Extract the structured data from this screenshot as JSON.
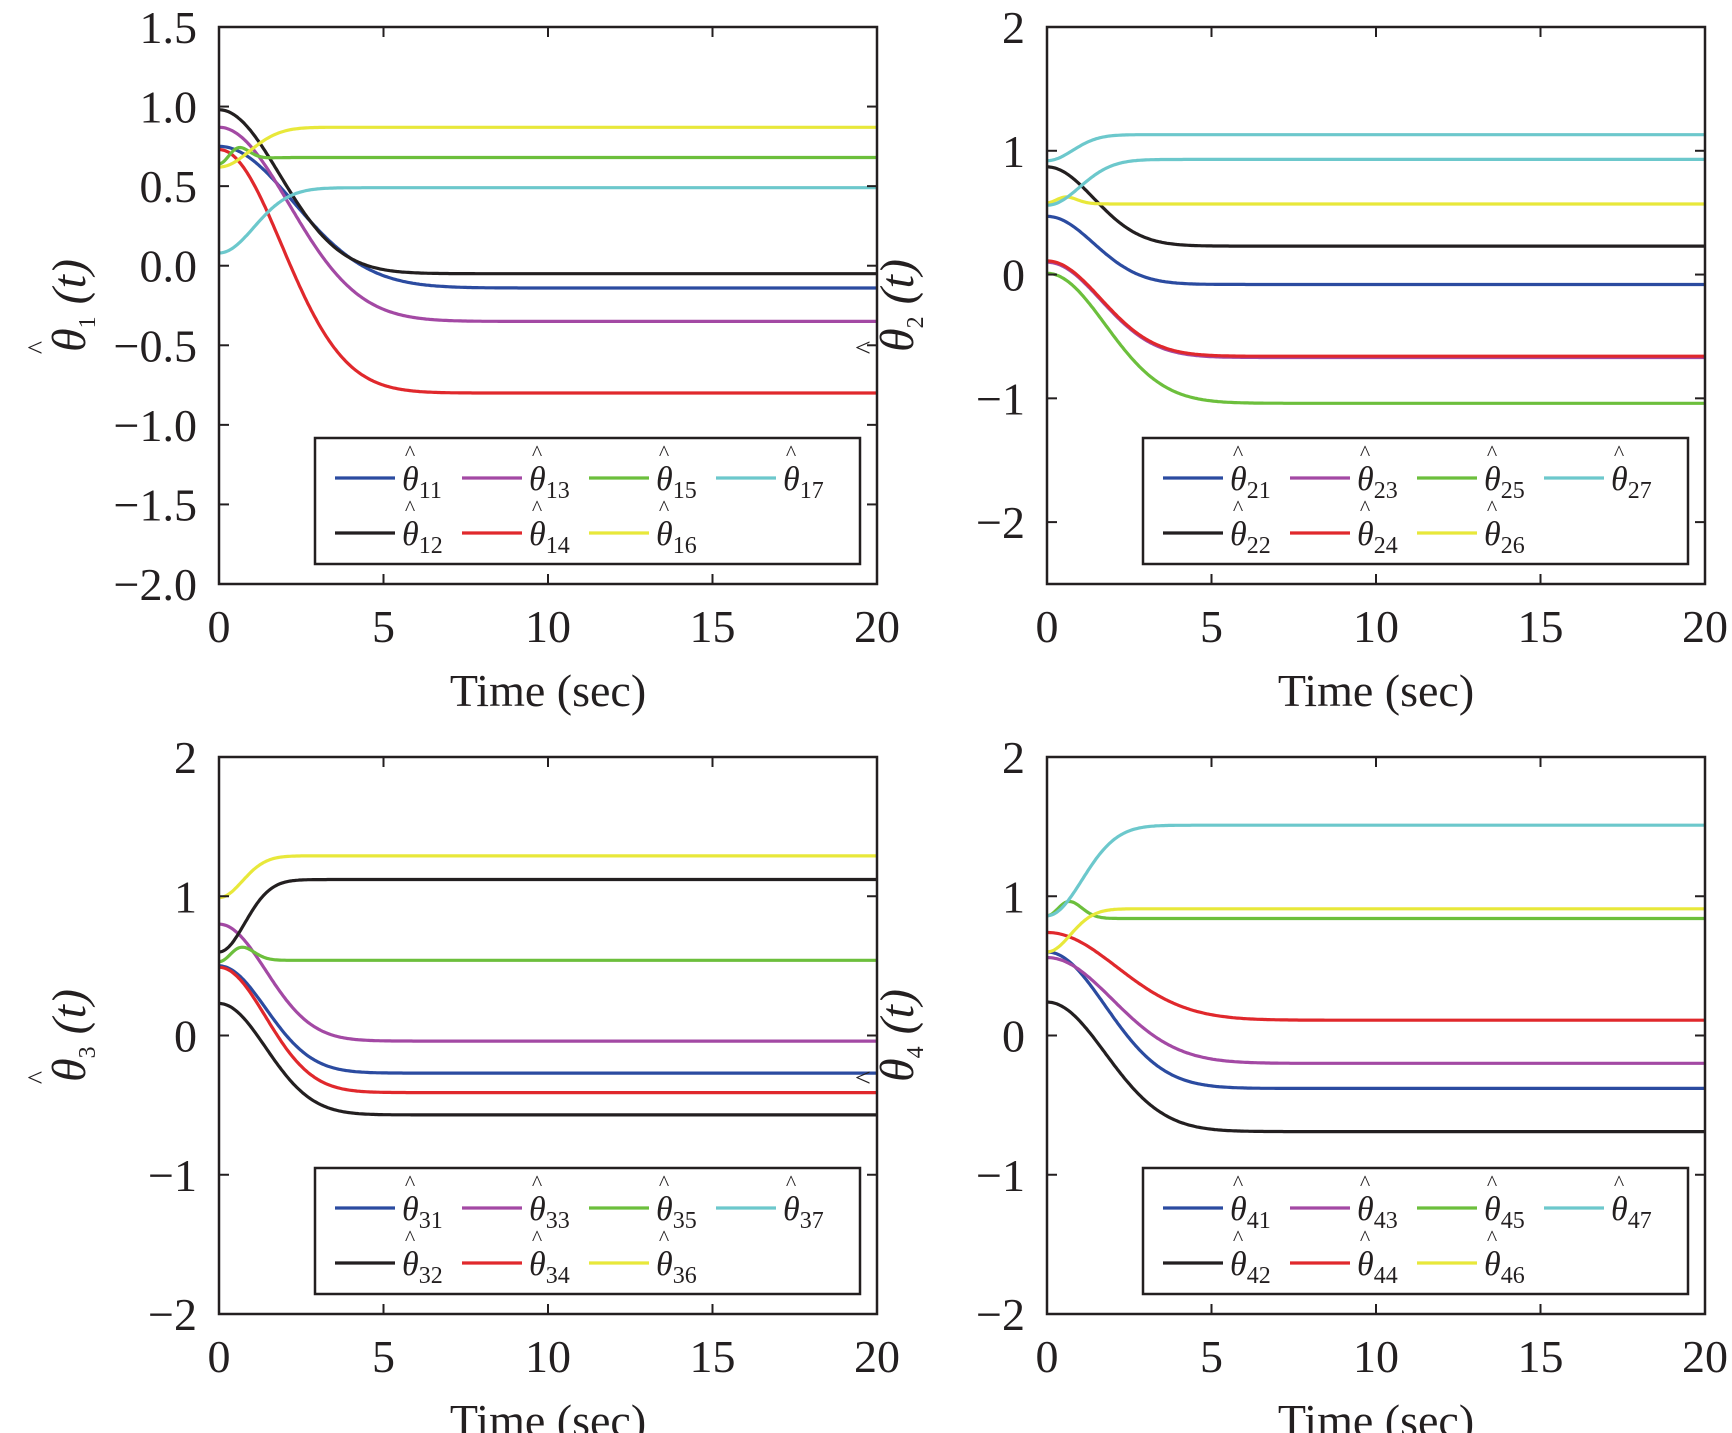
{
  "chart_data": [
    {
      "type": "line",
      "panel": "top-left",
      "xlabel": "Time (sec)",
      "ylabel": "θ̂1 (t)",
      "ylabel_parts": {
        "base": "θ",
        "hat": "^",
        "sub": "1",
        "arg": " (t)"
      },
      "xlim": [
        0,
        20
      ],
      "ylim": [
        -2.0,
        1.5
      ],
      "xticks": [
        0,
        5,
        10,
        15,
        20
      ],
      "xtick_labels": [
        "0",
        "5",
        "10",
        "15",
        "20"
      ],
      "yticks": [
        -2.0,
        -1.5,
        -1.0,
        -0.5,
        0.0,
        0.5,
        1.0,
        1.5
      ],
      "ytick_labels": [
        "−2.0",
        "−1.5",
        "−1.0",
        "−0.5",
        "0.0",
        "0.5",
        "1.0",
        "1.5"
      ],
      "grid": false,
      "legend_position": "bottom-right",
      "legend_columns": 4,
      "series": [
        {
          "name": "θ̂11",
          "label": {
            "base": "θ",
            "sub": "11"
          },
          "color": "#2b4ba0",
          "y0": 0.75,
          "yf": -0.14,
          "tau": 3.2,
          "shape": "sigmoid",
          "legend_slot": 0
        },
        {
          "name": "θ̂12",
          "label": {
            "base": "θ",
            "sub": "12"
          },
          "color": "#231f20",
          "y0": 0.98,
          "yf": -0.05,
          "tau": 2.6,
          "shape": "sigmoid",
          "legend_slot": 4
        },
        {
          "name": "θ̂13",
          "label": {
            "base": "θ",
            "sub": "13"
          },
          "color": "#a349a4",
          "y0": 0.87,
          "yf": -0.35,
          "tau": 3.0,
          "shape": "sigmoid",
          "legend_slot": 1
        },
        {
          "name": "θ̂14",
          "label": {
            "base": "θ",
            "sub": "14"
          },
          "color": "#e0282c",
          "y0": 0.73,
          "yf": -0.8,
          "tau": 2.7,
          "shape": "sigmoid",
          "legend_slot": 5
        },
        {
          "name": "θ̂15",
          "label": {
            "base": "θ",
            "sub": "15"
          },
          "color": "#6cbf3c",
          "y0": 0.64,
          "yf": 0.68,
          "tau": 1.0,
          "shape": "bump",
          "peak": 0.77,
          "tpeak": 0.6,
          "legend_slot": 2
        },
        {
          "name": "θ̂16",
          "label": {
            "base": "θ",
            "sub": "16"
          },
          "color": "#e8e83a",
          "y0": 0.62,
          "yf": 0.87,
          "tau": 1.3,
          "shape": "sigmoid",
          "legend_slot": 6
        },
        {
          "name": "θ̂17",
          "label": {
            "base": "θ",
            "sub": "17"
          },
          "color": "#6cc8cc",
          "y0": 0.08,
          "yf": 0.49,
          "tau": 1.5,
          "shape": "sigmoid",
          "legend_slot": 3
        }
      ]
    },
    {
      "type": "line",
      "panel": "top-right",
      "xlabel": "Time (sec)",
      "ylabel": "θ̂2 (t)",
      "ylabel_parts": {
        "base": "θ",
        "hat": "^",
        "sub": "2",
        "arg": " (t)"
      },
      "xlim": [
        0,
        20
      ],
      "ylim": [
        -2.5,
        2
      ],
      "xticks": [
        0,
        5,
        10,
        15,
        20
      ],
      "xtick_labels": [
        "0",
        "5",
        "10",
        "15",
        "20"
      ],
      "yticks": [
        -2,
        -1,
        0,
        1,
        2
      ],
      "ytick_labels": [
        "−2",
        "−1",
        "0",
        "1",
        "2"
      ],
      "grid": false,
      "legend_position": "bottom-right",
      "legend_columns": 4,
      "series": [
        {
          "name": "θ̂21",
          "label": {
            "base": "θ",
            "sub": "21"
          },
          "color": "#2b4ba0",
          "y0": 0.47,
          "yf": -0.08,
          "tau": 2.0,
          "shape": "sigmoid",
          "legend_slot": 0
        },
        {
          "name": "θ̂22",
          "label": {
            "base": "θ",
            "sub": "22"
          },
          "color": "#231f20",
          "y0": 0.87,
          "yf": 0.23,
          "tau": 2.0,
          "shape": "sigmoid",
          "legend_slot": 4
        },
        {
          "name": "θ̂23",
          "label": {
            "base": "θ",
            "sub": "23"
          },
          "color": "#a349a4",
          "y0": 0.1,
          "yf": -0.67,
          "tau": 2.3,
          "shape": "sigmoid",
          "legend_slot": 1
        },
        {
          "name": "θ̂24",
          "label": {
            "base": "θ",
            "sub": "24"
          },
          "color": "#e0282c",
          "y0": 0.11,
          "yf": -0.66,
          "tau": 2.3,
          "shape": "sigmoid",
          "legend_slot": 5
        },
        {
          "name": "θ̂25",
          "label": {
            "base": "θ",
            "sub": "25"
          },
          "color": "#6cbf3c",
          "y0": 0.01,
          "yf": -1.04,
          "tau": 2.5,
          "shape": "sigmoid",
          "legend_slot": 2
        },
        {
          "name": "θ̂26",
          "label": {
            "base": "θ",
            "sub": "26"
          },
          "color": "#e8e83a",
          "y0": 0.58,
          "yf": 0.57,
          "tau": 1.0,
          "shape": "bump",
          "peak": 0.63,
          "tpeak": 0.6,
          "legend_slot": 6
        },
        {
          "name": "θ̂27",
          "label": {
            "base": "θ",
            "sub": "27"
          },
          "color": "#6cc8cc",
          "y0": 0.92,
          "yf": 1.13,
          "tau": 1.1,
          "shape": "sigmoid",
          "legend_slot": 3
        },
        {
          "name": "",
          "label": null,
          "color": "#6cc8cc",
          "y0": 0.56,
          "yf": 0.93,
          "tau": 1.4,
          "shape": "sigmoid",
          "legend_slot": null
        }
      ]
    },
    {
      "type": "line",
      "panel": "bottom-left",
      "xlabel": "Time (sec)",
      "ylabel": "θ̂3 (t)",
      "ylabel_parts": {
        "base": "θ",
        "hat": "^",
        "sub": "3",
        "arg": " (t)"
      },
      "xlim": [
        0,
        20
      ],
      "ylim": [
        -2,
        2
      ],
      "xticks": [
        0,
        5,
        10,
        15,
        20
      ],
      "xtick_labels": [
        "0",
        "5",
        "10",
        "15",
        "20"
      ],
      "yticks": [
        -2,
        -1,
        0,
        1,
        2
      ],
      "ytick_labels": [
        "−2",
        "−1",
        "0",
        "1",
        "2"
      ],
      "grid": false,
      "legend_position": "bottom-right",
      "legend_columns": 4,
      "series": [
        {
          "name": "θ̂31",
          "label": {
            "base": "θ",
            "sub": "31"
          },
          "color": "#2b4ba0",
          "y0": 0.5,
          "yf": -0.27,
          "tau": 2.0,
          "shape": "sigmoid",
          "legend_slot": 0
        },
        {
          "name": "θ̂32",
          "label": {
            "base": "θ",
            "sub": "32"
          },
          "color": "#231f20",
          "y0": 0.23,
          "yf": -0.57,
          "tau": 2.0,
          "shape": "sigmoid",
          "legend_slot": 4
        },
        {
          "name": "θ̂33",
          "label": {
            "base": "θ",
            "sub": "33"
          },
          "color": "#a349a4",
          "y0": 0.8,
          "yf": -0.04,
          "tau": 2.0,
          "shape": "sigmoid",
          "legend_slot": 1
        },
        {
          "name": "θ̂34",
          "label": {
            "base": "θ",
            "sub": "34"
          },
          "color": "#e0282c",
          "y0": 0.49,
          "yf": -0.41,
          "tau": 2.0,
          "shape": "sigmoid",
          "legend_slot": 5
        },
        {
          "name": "θ̂35",
          "label": {
            "base": "θ",
            "sub": "35"
          },
          "color": "#6cbf3c",
          "y0": 0.53,
          "yf": 0.54,
          "tau": 1.0,
          "shape": "bump",
          "peak": 0.64,
          "tpeak": 0.7,
          "legend_slot": 2
        },
        {
          "name": "θ̂36",
          "label": {
            "base": "θ",
            "sub": "36"
          },
          "color": "#e8e83a",
          "y0": 0.99,
          "yf": 1.29,
          "tau": 1.0,
          "shape": "sigmoid",
          "legend_slot": 6
        },
        {
          "name": "θ̂37",
          "label": {
            "base": "θ",
            "sub": "37"
          },
          "color": "#6cc8cc",
          "y0": null,
          "yf": null,
          "tau": 1.0,
          "shape": "none",
          "legend_slot": 3
        },
        {
          "name": "",
          "label": null,
          "color": "#231f20",
          "y0": 0.6,
          "yf": 1.12,
          "tau": 1.1,
          "shape": "sigmoid",
          "legend_slot": null
        }
      ]
    },
    {
      "type": "line",
      "panel": "bottom-right",
      "xlabel": "Time (sec)",
      "ylabel": "θ̂4 (t)",
      "ylabel_parts": {
        "base": "θ",
        "hat": "^",
        "sub": "4",
        "arg": " (t)"
      },
      "xlim": [
        0,
        20
      ],
      "ylim": [
        -2,
        2
      ],
      "xticks": [
        0,
        5,
        10,
        15,
        20
      ],
      "xtick_labels": [
        "0",
        "5",
        "10",
        "15",
        "20"
      ],
      "yticks": [
        -2,
        -1,
        0,
        1,
        2
      ],
      "ytick_labels": [
        "−2",
        "−1",
        "0",
        "1",
        "2"
      ],
      "grid": false,
      "legend_position": "bottom-right",
      "legend_columns": 4,
      "series": [
        {
          "name": "θ̂41",
          "label": {
            "base": "θ",
            "sub": "41"
          },
          "color": "#2b4ba0",
          "y0": 0.6,
          "yf": -0.38,
          "tau": 2.5,
          "shape": "sigmoid",
          "legend_slot": 0
        },
        {
          "name": "θ̂42",
          "label": {
            "base": "θ",
            "sub": "42"
          },
          "color": "#231f20",
          "y0": 0.24,
          "yf": -0.69,
          "tau": 2.5,
          "shape": "sigmoid",
          "legend_slot": 4
        },
        {
          "name": "θ̂43",
          "label": {
            "base": "θ",
            "sub": "43"
          },
          "color": "#a349a4",
          "y0": 0.56,
          "yf": -0.2,
          "tau": 2.8,
          "shape": "sigmoid",
          "legend_slot": 1
        },
        {
          "name": "θ̂44",
          "label": {
            "base": "θ",
            "sub": "44"
          },
          "color": "#e0282c",
          "y0": 0.74,
          "yf": 0.11,
          "tau": 3.0,
          "shape": "sigmoid",
          "legend_slot": 5
        },
        {
          "name": "θ̂45",
          "label": {
            "base": "θ",
            "sub": "45"
          },
          "color": "#6cbf3c",
          "y0": 0.86,
          "yf": 0.84,
          "tau": 1.0,
          "shape": "bump",
          "peak": 0.97,
          "tpeak": 0.7,
          "legend_slot": 2
        },
        {
          "name": "θ̂46",
          "label": {
            "base": "θ",
            "sub": "46"
          },
          "color": "#e8e83a",
          "y0": 0.6,
          "yf": 0.91,
          "tau": 1.0,
          "shape": "sigmoid",
          "legend_slot": 6
        },
        {
          "name": "θ̂47",
          "label": {
            "base": "θ",
            "sub": "47"
          },
          "color": "#6cc8cc",
          "y0": 0.86,
          "yf": 1.51,
          "tau": 1.5,
          "shape": "sigmoid",
          "legend_slot": 3
        }
      ]
    }
  ]
}
